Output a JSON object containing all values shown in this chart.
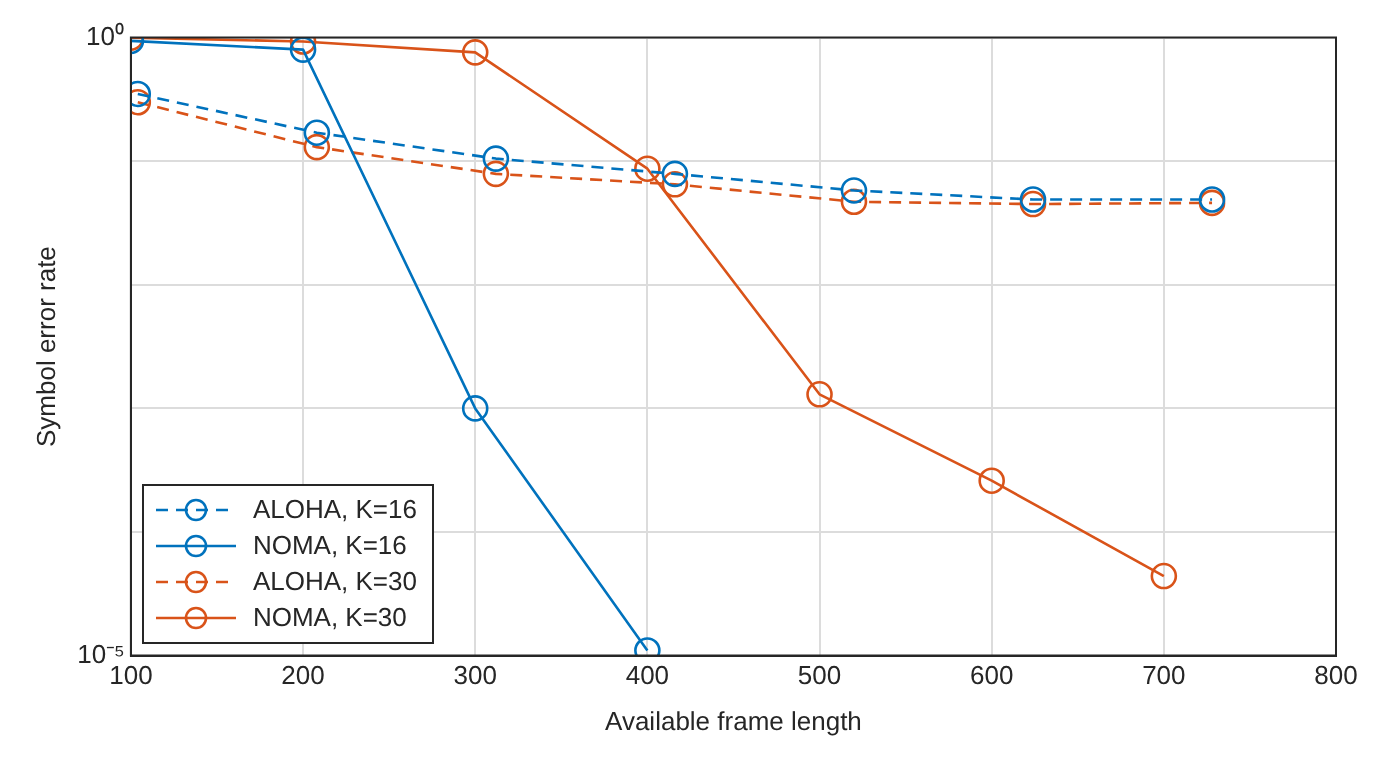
{
  "chart_data": {
    "type": "line",
    "xlabel": "Available frame length",
    "ylabel": "Symbol error rate",
    "log": "y",
    "xlim": [
      100,
      800
    ],
    "xticks": [
      100,
      200,
      300,
      400,
      500,
      600,
      700,
      800
    ],
    "ylim": [
      1e-05,
      1
    ],
    "yticks": [
      {
        "value": 1,
        "label": "10⁰"
      },
      {
        "value": 0.1,
        "label": null
      },
      {
        "value": 0.01,
        "label": null
      },
      {
        "value": 0.001,
        "label": null
      },
      {
        "value": 0.0001,
        "label": null
      },
      {
        "value": 1e-05,
        "label": "10⁻⁵"
      }
    ],
    "grid": true,
    "legend": "bottom left",
    "marker": "circle",
    "series": [
      {
        "name": "ALOHA, K=16",
        "color": "#0072bd",
        "line_style": "dashed",
        "x": [
          104,
          208,
          312,
          416,
          520,
          624,
          728
        ],
        "values": [
          0.35,
          0.17,
          0.105,
          0.079,
          0.058,
          0.049,
          0.049
        ]
      },
      {
        "name": "NOMA, K=16",
        "color": "#0072bd",
        "line_style": "solid",
        "x": [
          100,
          200,
          300,
          400
        ],
        "values": [
          0.94,
          0.8,
          0.001,
          1.1e-05
        ]
      },
      {
        "name": "ALOHA, K=30",
        "color": "#d95319",
        "line_style": "dashed",
        "x": [
          104,
          208,
          312,
          416,
          520,
          624,
          728
        ],
        "values": [
          0.3,
          0.13,
          0.079,
          0.065,
          0.047,
          0.045,
          0.046
        ]
      },
      {
        "name": "NOMA, K=30",
        "color": "#d95319",
        "line_style": "solid",
        "x": [
          100,
          200,
          300,
          400,
          500,
          600,
          700
        ],
        "values": [
          1,
          0.93,
          0.76,
          0.087,
          0.0013,
          0.00026,
          4.4e-05
        ]
      }
    ]
  }
}
